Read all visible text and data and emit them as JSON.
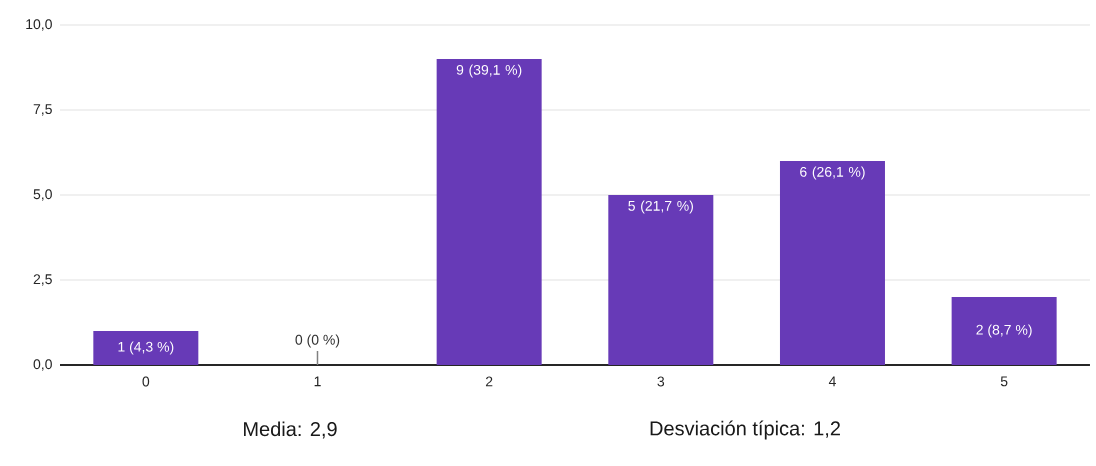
{
  "chart_data": {
    "type": "bar",
    "categories": [
      "0",
      "1",
      "2",
      "3",
      "4",
      "5"
    ],
    "values": [
      1,
      0,
      9,
      5,
      6,
      2
    ],
    "value_labels": [
      "1 (4,3 %)",
      "0 (0 %)",
      "9 (39,1 %)",
      "5 (21,7 %)",
      "6 (26,1 %)",
      "2 (8,7 %)"
    ],
    "color": "#673ab7",
    "ylim": [
      0,
      10
    ],
    "yticks": [
      {
        "value": 0,
        "label": "0,0"
      },
      {
        "value": 2.5,
        "label": "2,5"
      },
      {
        "value": 5,
        "label": "5,0"
      },
      {
        "value": 7.5,
        "label": "7,5"
      },
      {
        "value": 10,
        "label": "10,0"
      }
    ],
    "grid": "y",
    "annotations": [
      "Media: 2,9",
      "Desviación típica: 1,2"
    ]
  }
}
